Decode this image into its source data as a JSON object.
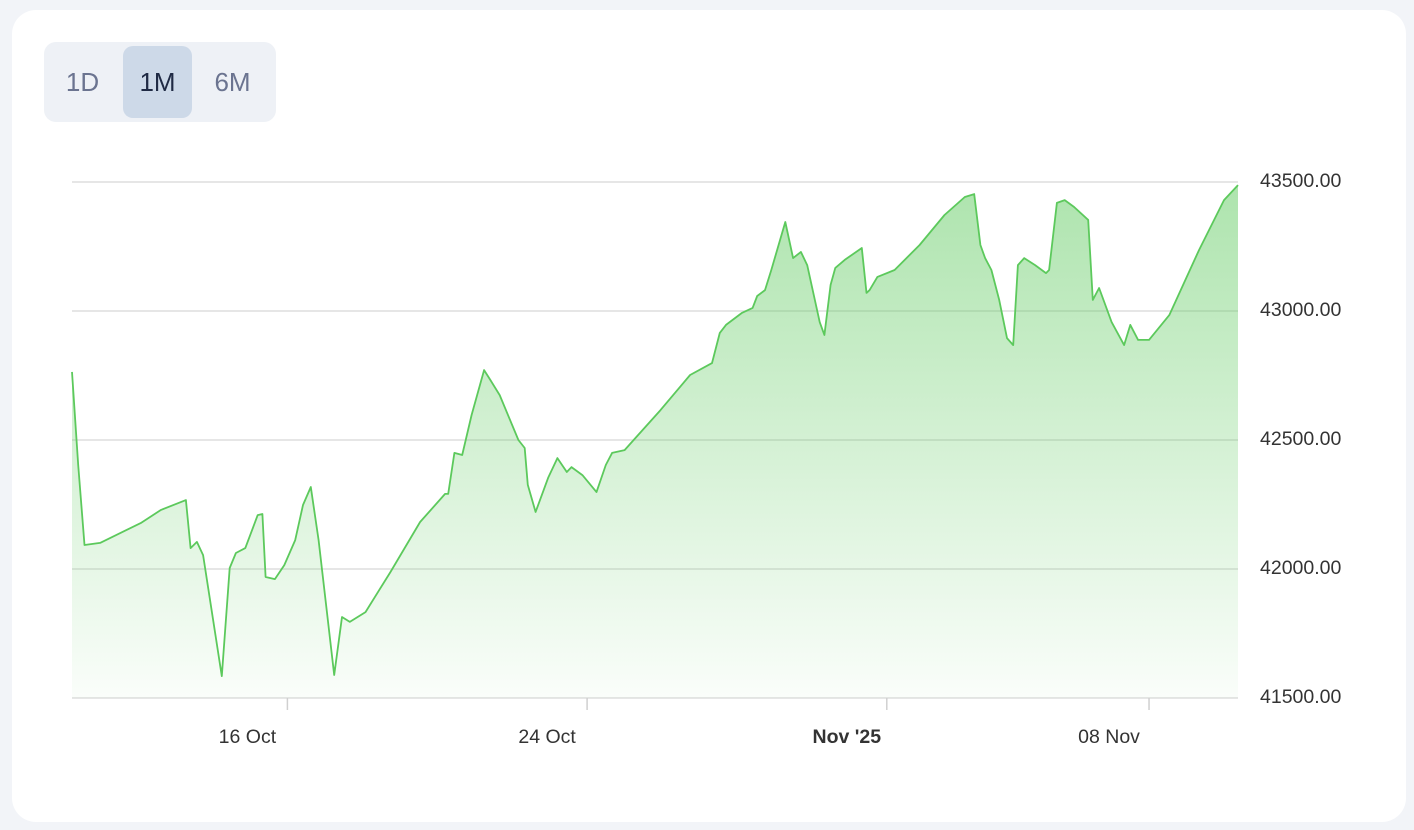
{
  "range_buttons": {
    "options": [
      "1D",
      "1M",
      "6M"
    ],
    "selected": "1M"
  },
  "chart_data": {
    "type": "area",
    "color": "#5cc95c",
    "grid": true,
    "xlim": [
      "2025-10-10T06:00",
      "2025-11-10T09:00"
    ],
    "xticks": [
      {
        "value": "2025-10-16",
        "label": "16 Oct"
      },
      {
        "value": "2025-10-24",
        "label": "24 Oct"
      },
      {
        "value": "2025-11-01",
        "label": "Nov '25",
        "bold": true
      },
      {
        "value": "2025-11-08",
        "label": "08 Nov"
      }
    ],
    "ylim": [
      41500,
      43500
    ],
    "yticks": [
      {
        "value": 41500,
        "label": "41500.00"
      },
      {
        "value": 42000,
        "label": "42000.00"
      },
      {
        "value": 42500,
        "label": "42500.00"
      },
      {
        "value": 43000,
        "label": "43000.00"
      },
      {
        "value": 43500,
        "label": "43500.00"
      }
    ],
    "x": [
      "2025-10-10T06:00",
      "2025-10-10T10:00",
      "2025-10-10T14:00",
      "2025-10-11T00:00",
      "2025-10-12T02:00",
      "2025-10-12T15:00",
      "2025-10-13T07:00",
      "2025-10-13T10:00",
      "2025-10-13T14:00",
      "2025-10-13T18:00",
      "2025-10-14T06:00",
      "2025-10-14T11:00",
      "2025-10-14T15:00",
      "2025-10-14T21:00",
      "2025-10-15T05:00",
      "2025-10-15T08:00",
      "2025-10-15T10:00",
      "2025-10-15T16:00",
      "2025-10-15T22:00",
      "2025-10-16T05:00",
      "2025-10-16T10:00",
      "2025-10-16T15:00",
      "2025-10-16T20:00",
      "2025-10-17T06:00",
      "2025-10-17T11:00",
      "2025-10-17T16:00",
      "2025-10-18T02:00",
      "2025-10-18T18:00",
      "2025-10-19T13:00",
      "2025-10-20T05:00",
      "2025-10-20T07:00",
      "2025-10-20T11:00",
      "2025-10-20T16:00",
      "2025-10-20T22:00",
      "2025-10-21T06:00",
      "2025-10-21T10:00",
      "2025-10-21T16:00",
      "2025-10-22T04:00",
      "2025-10-22T08:00",
      "2025-10-22T10:00",
      "2025-10-22T15:00",
      "2025-10-22T23:00",
      "2025-10-23T05:00",
      "2025-10-23T11:00",
      "2025-10-23T14:00",
      "2025-10-23T21:00",
      "2025-10-24T06:00",
      "2025-10-24T12:00",
      "2025-10-24T16:00",
      "2025-10-25T00:00",
      "2025-10-25T23:00",
      "2025-10-26T18:00",
      "2025-10-27T08:00",
      "2025-10-27T13:00",
      "2025-10-27T17:00",
      "2025-10-28T03:00",
      "2025-10-28T10:00",
      "2025-10-28T13:00",
      "2025-10-28T18:00",
      "2025-10-28T22:00",
      "2025-10-29T07:00",
      "2025-10-29T12:00",
      "2025-10-29T17:00",
      "2025-10-29T21:00",
      "2025-10-30T05:00",
      "2025-10-30T08:00",
      "2025-10-30T12:00",
      "2025-10-30T15:00",
      "2025-10-30T21:00",
      "2025-10-31T08:00",
      "2025-10-31T11:00",
      "2025-10-31T13:00",
      "2025-10-31T18:00",
      "2025-11-01T05:00",
      "2025-11-01T21:00",
      "2025-11-02T13:00",
      "2025-11-03T02:00",
      "2025-11-03T08:00",
      "2025-11-03T12:00",
      "2025-11-03T15:00",
      "2025-11-03T19:00",
      "2025-11-04T00:00",
      "2025-11-04T05:00",
      "2025-11-04T09:00",
      "2025-11-04T12:00",
      "2025-11-04T16:00",
      "2025-11-04T23:00",
      "2025-11-05T06:00",
      "2025-11-05T08:00",
      "2025-11-05T13:00",
      "2025-11-05T18:00",
      "2025-11-06T00:00",
      "2025-11-06T09:00",
      "2025-11-06T12:00",
      "2025-11-06T16:00",
      "2025-11-07T00:00",
      "2025-11-07T08:00",
      "2025-11-07T12:00",
      "2025-11-07T17:00",
      "2025-11-08T00:00",
      "2025-11-08T13:00",
      "2025-11-09T08:00",
      "2025-11-10T00:00",
      "2025-11-10T09:00"
    ],
    "values": [
      42764,
      42403,
      42093,
      42101,
      42178,
      42229,
      42267,
      42081,
      42105,
      42054,
      41585,
      42004,
      42062,
      42081,
      42209,
      42213,
      41969,
      41961,
      42015,
      42112,
      42248,
      42318,
      42112,
      41589,
      41814,
      41795,
      41833,
      41988,
      42182,
      42291,
      42291,
      42450,
      42442,
      42597,
      42771,
      42733,
      42674,
      42500,
      42469,
      42326,
      42221,
      42353,
      42430,
      42376,
      42395,
      42364,
      42298,
      42403,
      42450,
      42461,
      42616,
      42752,
      42798,
      42915,
      42946,
      42992,
      43012,
      43058,
      43081,
      43159,
      43345,
      43205,
      43229,
      43178,
      42957,
      42907,
      43101,
      43167,
      43198,
      43244,
      43070,
      43081,
      43132,
      43159,
      43256,
      43372,
      43442,
      43453,
      43256,
      43205,
      43159,
      43043,
      42895,
      42868,
      43178,
      43205,
      43178,
      43147,
      43159,
      43419,
      43430,
      43403,
      43353,
      43043,
      43089,
      42957,
      42868,
      42946,
      42888,
      42888,
      42984,
      43236,
      43430,
      43488
    ]
  }
}
